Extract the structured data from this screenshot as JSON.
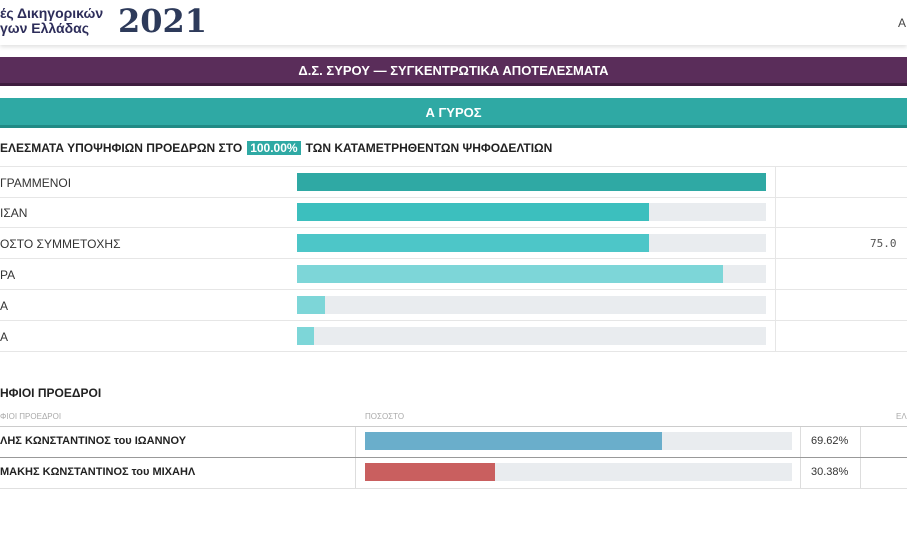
{
  "header": {
    "brand_line1": "ές Δικηγορικών",
    "brand_line2": "γων Ελλάδας",
    "year": "2021",
    "right": "Α"
  },
  "banner": "Δ.Σ. ΣΥΡΟΥ — ΣΥΓΚΕΝΤΡΩΤΙΚΑ ΑΠΟΤΕΛΕΣΜΑΤΑ",
  "round": "Α ΓΥΡΟΣ",
  "summary": {
    "prefix": "ΕΛΕΣΜΑΤΑ ΥΠΟΨΗΦΙΩΝ ΠΡΟΕΔΡΩΝ ΣΤΟ",
    "percent": "100.00%",
    "suffix": "ΤΩΝ ΚΑΤΑΜΕΤΡΗΘΕΝΤΩΝ ΨΗΦΟΔΕΛΤΙΩΝ"
  },
  "stats": {
    "xlim": [
      0,
      100
    ],
    "rows": [
      {
        "label": "ΓΡΑΜΜΕΝΟΙ",
        "value": 100,
        "color": "#2fa9a4"
      },
      {
        "label": "ΙΣΑΝ",
        "value": 75,
        "color": "#3cbfbe"
      },
      {
        "label": "ΟΣΤΟ ΣΥΜΜΕΤΟΧΗΣ",
        "value": 75,
        "color": "#4dc6c8",
        "value_label": "75.0"
      },
      {
        "label": "ΡΑ",
        "value": 90.8,
        "color": "#7dd6d8"
      },
      {
        "label": "Α",
        "value": 6,
        "color": "#7dd6d8"
      },
      {
        "label": "Α",
        "value": 3.6,
        "color": "#7dd6d8"
      }
    ]
  },
  "candidates": {
    "title": "ΗΦΙΟΙ ΠΡΟΕΔΡΟΙ",
    "columns": [
      "ΦΙΟΙ ΠΡΟΕΔΡΟΙ",
      "ΠΟΣΟΣΤΟ",
      "ΕΛ"
    ],
    "xlim": [
      0,
      100
    ],
    "rows": [
      {
        "name": "ΛΗΣ ΚΩΝΣΤΑΝΤΙΝΟΣ του ΙΩΑΝΝΟΥ",
        "value": 69.62,
        "value_label": "69.62%",
        "color": "#6aaecb"
      },
      {
        "name": "ΜΑΚΗΣ ΚΩΝΣΤΑΝΤΙΝΟΣ του ΜΙΧΑΗΛ",
        "value": 30.38,
        "value_label": "30.38%",
        "color": "#c95f5f"
      }
    ]
  }
}
